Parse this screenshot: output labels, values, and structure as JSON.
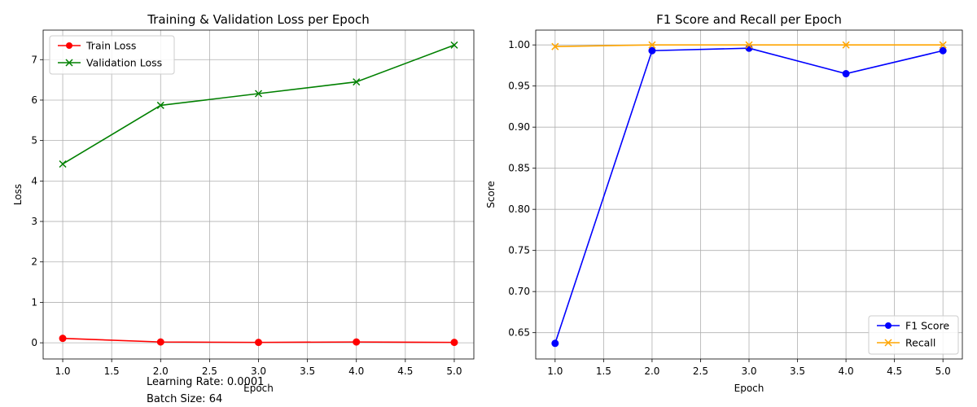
{
  "notes": {
    "learning_rate": "Learning Rate: 0.0001",
    "batch_size": "Batch Size: 64"
  },
  "chart_data": [
    {
      "type": "line",
      "title": "Training & Validation Loss per Epoch",
      "xlabel": "Epoch",
      "ylabel": "Loss",
      "xlim": [
        0.8,
        5.2
      ],
      "ylim": [
        -0.4,
        7.73
      ],
      "xticks": [
        "1.0",
        "1.5",
        "2.0",
        "2.5",
        "3.0",
        "3.5",
        "4.0",
        "4.5",
        "5.0"
      ],
      "yticks": [
        "0",
        "1",
        "2",
        "3",
        "4",
        "5",
        "6",
        "7"
      ],
      "grid": true,
      "legend": "upper left",
      "series": [
        {
          "name": "Train Loss",
          "color": "#ff0000",
          "marker": "circle",
          "x": [
            1,
            2,
            3,
            4,
            5
          ],
          "y": [
            0.11,
            0.02,
            0.01,
            0.02,
            0.01
          ]
        },
        {
          "name": "Validation Loss",
          "color": "#008000",
          "marker": "x",
          "x": [
            1,
            2,
            3,
            4,
            5
          ],
          "y": [
            4.42,
            5.87,
            6.16,
            6.45,
            7.36
          ]
        }
      ]
    },
    {
      "type": "line",
      "title": "F1 Score and Recall per Epoch",
      "xlabel": "Epoch",
      "ylabel": "Score",
      "xlim": [
        0.8,
        5.2
      ],
      "ylim": [
        0.618,
        1.018
      ],
      "xticks": [
        "1.0",
        "1.5",
        "2.0",
        "2.5",
        "3.0",
        "3.5",
        "4.0",
        "4.5",
        "5.0"
      ],
      "yticks": [
        "0.65",
        "0.70",
        "0.75",
        "0.80",
        "0.85",
        "0.90",
        "0.95",
        "1.00"
      ],
      "grid": true,
      "legend": "lower right",
      "series": [
        {
          "name": "F1 Score",
          "color": "#0000ff",
          "marker": "circle",
          "x": [
            1,
            2,
            3,
            4,
            5
          ],
          "y": [
            0.637,
            0.993,
            0.996,
            0.965,
            0.993
          ]
        },
        {
          "name": "Recall",
          "color": "#ffa500",
          "marker": "x",
          "x": [
            1,
            2,
            3,
            4,
            5
          ],
          "y": [
            0.998,
            1.0,
            1.0,
            1.0,
            1.0
          ]
        }
      ]
    }
  ]
}
